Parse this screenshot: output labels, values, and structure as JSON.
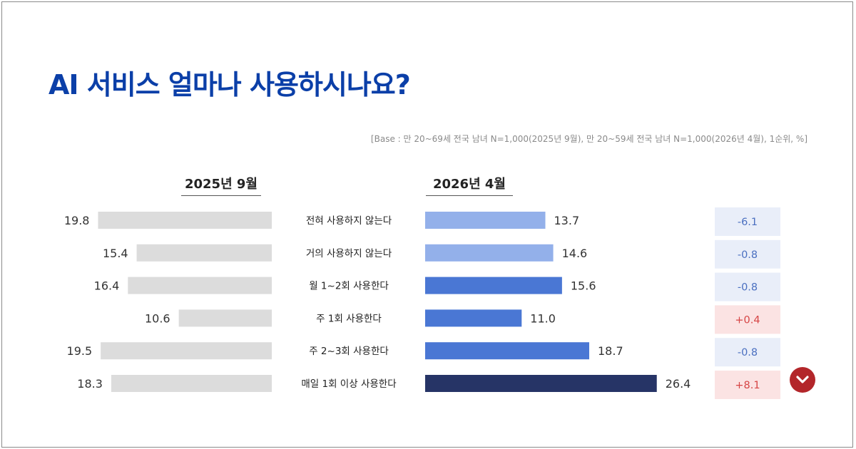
{
  "title": "AI 서비스 얼마나 사용하시나요?",
  "base_note": "[Base : 만 20~69세 전국 남녀 N=1,000(2025년 9월), 만 20~59세 전국 남녀 N=1,000(2026년 4월), 1순위, %]",
  "colors": {
    "title": "#0b3fa8",
    "bar_2025": "#dcdcdc",
    "bar_2026": [
      "#93b0ea",
      "#93b0ea",
      "#4a77d4",
      "#4a77d4",
      "#4a77d4",
      "#263466"
    ],
    "diff_negative_bg": "#e9eef9",
    "diff_negative_text": "#4a6fc0",
    "diff_positive_bg": "#fbe3e3",
    "diff_positive_text": "#d64545",
    "badge": "#b3262a"
  },
  "chart_data": {
    "type": "bar",
    "orientation": "horizontal-butterfly",
    "categories": [
      "전혀 사용하지 않는다",
      "거의 사용하지 않는다",
      "월 1~2회 사용한다",
      "주 1회 사용한다",
      "주 2~3회 사용한다",
      "매일 1회 이상 사용한다"
    ],
    "series": [
      {
        "name": "2025년 9월",
        "values": [
          19.8,
          15.4,
          16.4,
          10.6,
          19.5,
          18.3
        ],
        "labels": [
          "19.8",
          "15.4",
          "16.4",
          "10.6",
          "19.5",
          "18.3"
        ]
      },
      {
        "name": "2026년 4월",
        "values": [
          13.7,
          14.6,
          15.6,
          11.0,
          18.7,
          26.4
        ],
        "labels": [
          "13.7",
          "14.6",
          "15.6",
          "11.0",
          "18.7",
          "26.4"
        ]
      }
    ],
    "differences": [
      "-6.1",
      "-0.8",
      "-0.8",
      "+0.4",
      "-0.8",
      "+8.1"
    ],
    "unit": "%",
    "highlight_icon": "chevron-down-icon",
    "grid": false,
    "legend": "top"
  }
}
